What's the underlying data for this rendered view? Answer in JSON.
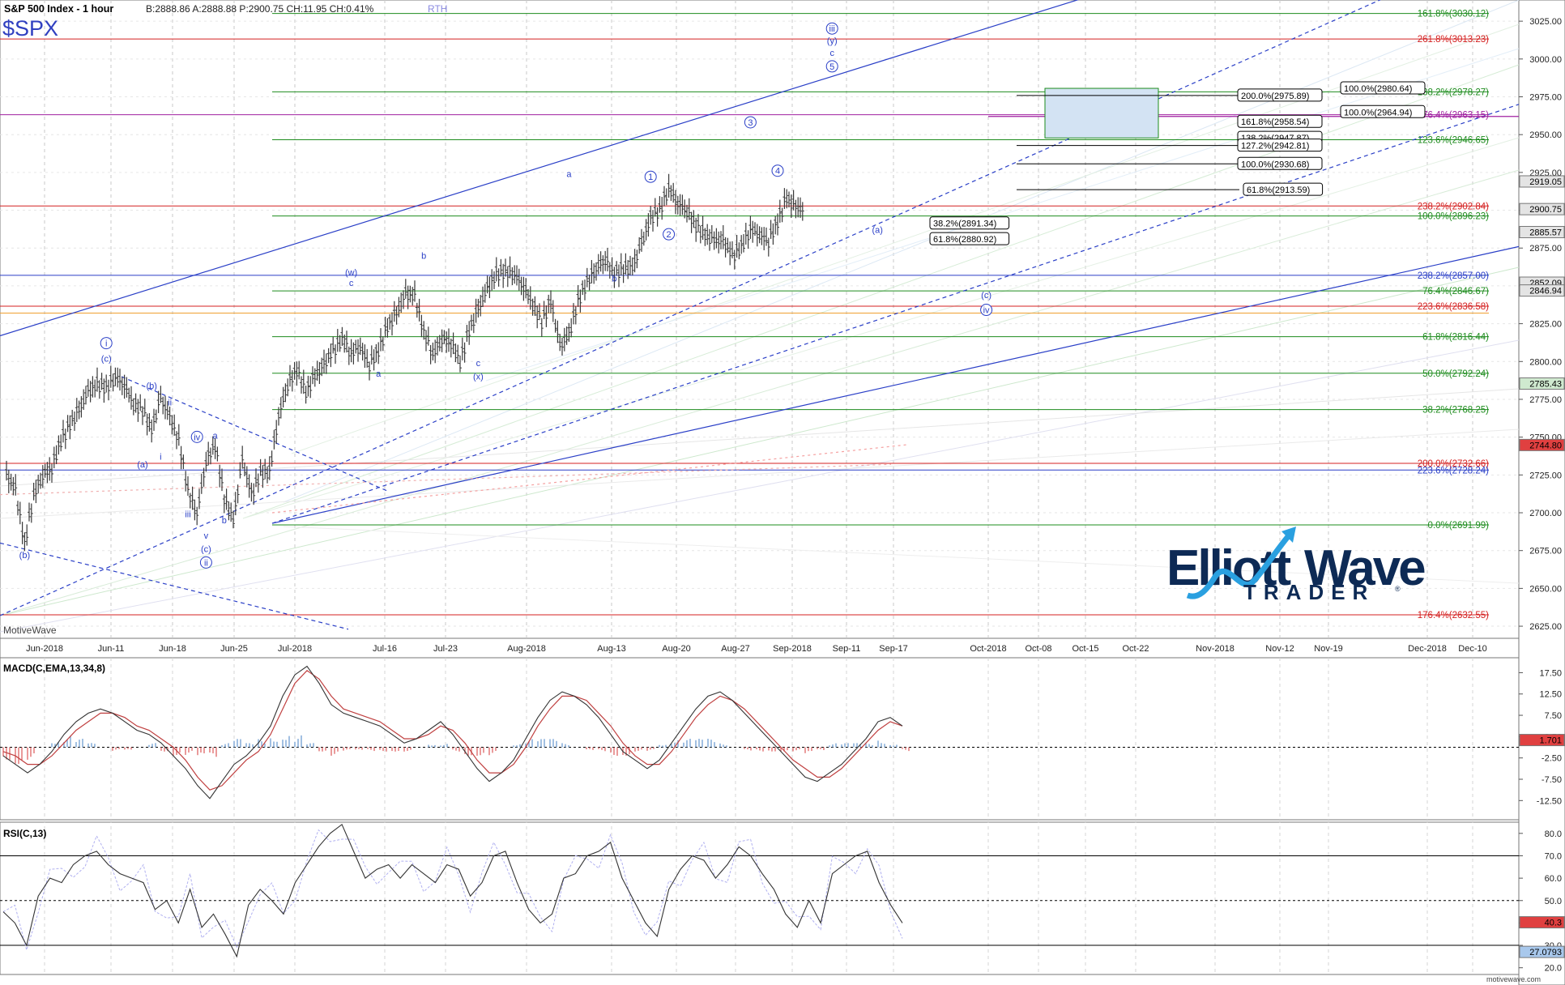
{
  "header": {
    "title": "S&P 500 Index - 1 hour",
    "quote": "B:2888.86  A:2888.88  P:2900.75  CH:11.95  CH:0.41%",
    "session": "RTH",
    "symbol": "$SPX"
  },
  "watermark": "MotiveWave",
  "footer_watermark": "motivewave.com",
  "logo": {
    "word1": "Elliott",
    "word2": "Wave",
    "sub": "TRADER",
    "reg": "®"
  },
  "colors": {
    "bars": "#3a3a3a",
    "wave": "#2a3fc7",
    "fib_green": "#1e8c1e",
    "fib_red": "#d42020",
    "fib_purple": "#a020a0",
    "macd_pos": "#7aa6d6",
    "macd_neg": "#e07070",
    "panel_bg": "#ffffff",
    "grid": "#cfcfcf"
  },
  "x_axis": {
    "labels": [
      "Jun-2018",
      "Jun-11",
      "Jun-18",
      "Jun-25",
      "Jul-2018",
      "Jul-16",
      "Jul-23",
      "Aug-2018",
      "Aug-13",
      "Aug-20",
      "Aug-27",
      "Sep-2018",
      "Sep-11",
      "Sep-17",
      "Oct-2018",
      "Oct-08",
      "Oct-15",
      "Oct-22",
      "Nov-2018",
      "Nov-12",
      "Nov-19",
      "Dec-2018",
      "Dec-10"
    ]
  },
  "chart_data": [
    {
      "type": "line",
      "title": "S&P 500 Index - 1 hour",
      "y_ticks": [
        2625,
        2650,
        2675,
        2700,
        2725,
        2750,
        2775,
        2800,
        2825,
        2850,
        2875,
        2900,
        2925,
        2950,
        2975,
        3000,
        3025
      ],
      "y_tick_labels": [
        "2625.00",
        "2650.00",
        "2675.00",
        "2700.00",
        "2725.00",
        "2750.00",
        "2775.00",
        "2800.00",
        "2825.00",
        "2850.00",
        "2875.00",
        "2900.00",
        "2925.00",
        "2950.00",
        "2975.00",
        "3000.00",
        "3025.00"
      ],
      "ylim": [
        2617,
        3039
      ],
      "price_path": [
        {
          "d": 0,
          "v": 2725
        },
        {
          "d": 1,
          "v": 2715
        },
        {
          "d": 2,
          "v": 2680
        },
        {
          "d": 3,
          "v": 2712
        },
        {
          "d": 4,
          "v": 2725
        },
        {
          "d": 5,
          "v": 2730
        },
        {
          "d": 6,
          "v": 2748
        },
        {
          "d": 7,
          "v": 2758
        },
        {
          "d": 8,
          "v": 2768
        },
        {
          "d": 9,
          "v": 2780
        },
        {
          "d": 10,
          "v": 2785
        },
        {
          "d": 11,
          "v": 2783
        },
        {
          "d": 12,
          "v": 2790
        },
        {
          "d": 13,
          "v": 2785
        },
        {
          "d": 14,
          "v": 2772
        },
        {
          "d": 15,
          "v": 2768
        },
        {
          "d": 16,
          "v": 2755
        },
        {
          "d": 17,
          "v": 2776
        },
        {
          "d": 18,
          "v": 2763
        },
        {
          "d": 19,
          "v": 2748
        },
        {
          "d": 20,
          "v": 2715
        },
        {
          "d": 21,
          "v": 2700
        },
        {
          "d": 22,
          "v": 2735
        },
        {
          "d": 23,
          "v": 2745
        },
        {
          "d": 24,
          "v": 2710
        },
        {
          "d": 25,
          "v": 2695
        },
        {
          "d": 26,
          "v": 2735
        },
        {
          "d": 27,
          "v": 2712
        },
        {
          "d": 28,
          "v": 2726
        },
        {
          "d": 29,
          "v": 2728
        },
        {
          "d": 30,
          "v": 2765
        },
        {
          "d": 31,
          "v": 2785
        },
        {
          "d": 32,
          "v": 2795
        },
        {
          "d": 33,
          "v": 2780
        },
        {
          "d": 34,
          "v": 2790
        },
        {
          "d": 35,
          "v": 2798
        },
        {
          "d": 36,
          "v": 2807
        },
        {
          "d": 37,
          "v": 2815
        },
        {
          "d": 38,
          "v": 2806
        },
        {
          "d": 39,
          "v": 2810
        },
        {
          "d": 40,
          "v": 2798
        },
        {
          "d": 41,
          "v": 2808
        },
        {
          "d": 42,
          "v": 2823
        },
        {
          "d": 43,
          "v": 2832
        },
        {
          "d": 44,
          "v": 2845
        },
        {
          "d": 45,
          "v": 2843
        },
        {
          "d": 46,
          "v": 2820
        },
        {
          "d": 47,
          "v": 2805
        },
        {
          "d": 48,
          "v": 2815
        },
        {
          "d": 49,
          "v": 2813
        },
        {
          "d": 50,
          "v": 2800
        },
        {
          "d": 51,
          "v": 2820
        },
        {
          "d": 52,
          "v": 2835
        },
        {
          "d": 53,
          "v": 2848
        },
        {
          "d": 54,
          "v": 2858
        },
        {
          "d": 55,
          "v": 2860
        },
        {
          "d": 56,
          "v": 2858
        },
        {
          "d": 57,
          "v": 2850
        },
        {
          "d": 58,
          "v": 2838
        },
        {
          "d": 59,
          "v": 2826
        },
        {
          "d": 60,
          "v": 2840
        },
        {
          "d": 61,
          "v": 2810
        },
        {
          "d": 62,
          "v": 2818
        },
        {
          "d": 63,
          "v": 2840
        },
        {
          "d": 64,
          "v": 2853
        },
        {
          "d": 65,
          "v": 2862
        },
        {
          "d": 66,
          "v": 2868
        },
        {
          "d": 67,
          "v": 2858
        },
        {
          "d": 68,
          "v": 2862
        },
        {
          "d": 69,
          "v": 2862
        },
        {
          "d": 70,
          "v": 2878
        },
        {
          "d": 71,
          "v": 2895
        },
        {
          "d": 72,
          "v": 2900
        },
        {
          "d": 73,
          "v": 2915
        },
        {
          "d": 74,
          "v": 2905
        },
        {
          "d": 75,
          "v": 2900
        },
        {
          "d": 76,
          "v": 2890
        },
        {
          "d": 77,
          "v": 2884
        },
        {
          "d": 78,
          "v": 2880
        },
        {
          "d": 79,
          "v": 2880
        },
        {
          "d": 80,
          "v": 2870
        },
        {
          "d": 81,
          "v": 2876
        },
        {
          "d": 82,
          "v": 2888
        },
        {
          "d": 83,
          "v": 2884
        },
        {
          "d": 84,
          "v": 2880
        },
        {
          "d": 85,
          "v": 2893
        },
        {
          "d": 86,
          "v": 2908
        },
        {
          "d": 87,
          "v": 2902
        },
        {
          "d": 88,
          "v": 2900
        }
      ],
      "horizontal_levels": [
        {
          "label": "161.8%(3030.12)",
          "value": 3030.12,
          "color": "green"
        },
        {
          "label": "261.8%(3013.23)",
          "value": 3013.23,
          "color": "red"
        },
        {
          "label": "138.2%(2978.27)",
          "value": 2978.27,
          "color": "green"
        },
        {
          "label": "176.4%(2963.15)",
          "value": 2963.15,
          "color": "purple"
        },
        {
          "label": "123.6%(2946.65)",
          "value": 2946.65,
          "color": "green"
        },
        {
          "label": "238.2%(2902.84)",
          "value": 2902.84,
          "color": "red"
        },
        {
          "label": "100.0%(2896.23)",
          "value": 2896.23,
          "color": "green"
        },
        {
          "label": "238.2%(2857.00)",
          "value": 2857.0,
          "color": "blue"
        },
        {
          "label": "76.4%(2846.67)",
          "value": 2846.67,
          "color": "green"
        },
        {
          "label": "223.6%(2836.58)",
          "value": 2836.58,
          "color": "red"
        },
        {
          "label": "61.8%(2816.44)",
          "value": 2816.44,
          "color": "green"
        },
        {
          "label": "50.0%(2792.24)",
          "value": 2792.24,
          "color": "green"
        },
        {
          "label": "38.2%(2768.25)",
          "value": 2768.25,
          "color": "green"
        },
        {
          "label": "200.0%(2732.66)",
          "value": 2732.66,
          "color": "red"
        },
        {
          "label": "223.6%(2728.24)",
          "value": 2728.24,
          "color": "blue"
        },
        {
          "label": "0.0%(2691.99)",
          "value": 2691.99,
          "color": "green"
        },
        {
          "label": "176.4%(2632.55)",
          "value": 2632.55,
          "color": "red"
        }
      ],
      "boxed_levels": [
        {
          "label": "100.0%(2980.64)",
          "value": 2980.64
        },
        {
          "label": "200.0%(2975.89)",
          "value": 2975.89
        },
        {
          "label": "100.0%(2964.94)",
          "value": 2964.94
        },
        {
          "label": "161.8%(2958.54)",
          "value": 2958.54
        },
        {
          "label": "138.2%(2947.87)",
          "value": 2947.87
        },
        {
          "label": "127.2%(2942.81)",
          "value": 2942.81
        },
        {
          "label": "100.0%(2930.68)",
          "value": 2930.68
        },
        {
          "label": "61.8%(2913.59)",
          "value": 2913.59
        },
        {
          "label": "38.2%(2891.34)",
          "value": 2891.34
        },
        {
          "label": "61.8%(2880.92)",
          "value": 2880.92
        }
      ],
      "price_tags": [
        {
          "label": "2919.05",
          "value": 2919.05,
          "style": "light"
        },
        {
          "label": "2900.75",
          "value": 2900.75,
          "style": "light"
        },
        {
          "label": "2885.57",
          "value": 2885.57,
          "style": "light"
        },
        {
          "label": "2852.09",
          "value": 2852.09,
          "style": "light"
        },
        {
          "label": "2846.94",
          "value": 2846.94,
          "style": "light"
        },
        {
          "label": "2785.43",
          "value": 2785.43,
          "style": "green"
        },
        {
          "label": "2744.80",
          "value": 2744.8,
          "style": "red"
        }
      ],
      "wave_labels": [
        {
          "t": "(b)",
          "d": 2,
          "v": 2670
        },
        {
          "t": "i",
          "d": 11,
          "v": 2810
        },
        {
          "t": "(c)",
          "d": 11,
          "v": 2800
        },
        {
          "t": "(a)",
          "d": 15,
          "v": 2730
        },
        {
          "t": "(b)",
          "d": 16,
          "v": 2782
        },
        {
          "t": "i",
          "d": 17,
          "v": 2735
        },
        {
          "t": "ii",
          "d": 18,
          "v": 2771
        },
        {
          "t": "iii",
          "d": 20,
          "v": 2697
        },
        {
          "t": "iv",
          "d": 21,
          "v": 2748
        },
        {
          "t": "v",
          "d": 22,
          "v": 2683
        },
        {
          "t": "(c)",
          "d": 22,
          "v": 2674
        },
        {
          "t": "ii",
          "d": 22,
          "v": 2665
        },
        {
          "t": "a",
          "d": 23,
          "v": 2749
        },
        {
          "t": "b",
          "d": 24,
          "v": 2693
        },
        {
          "t": "(w)",
          "d": 38,
          "v": 2857
        },
        {
          "t": "c",
          "d": 38,
          "v": 2850
        },
        {
          "t": "a",
          "d": 41,
          "v": 2790
        },
        {
          "t": "b",
          "d": 46,
          "v": 2868
        },
        {
          "t": "c",
          "d": 52,
          "v": 2797
        },
        {
          "t": "(x)",
          "d": 52,
          "v": 2788
        },
        {
          "t": "a",
          "d": 62,
          "v": 2922
        },
        {
          "t": "b",
          "d": 67,
          "v": 2853
        },
        {
          "t": "1",
          "d": 71,
          "v": 2920
        },
        {
          "t": "2",
          "d": 73,
          "v": 2882
        },
        {
          "t": "3",
          "d": 82,
          "v": 2956
        },
        {
          "t": "4",
          "d": 85,
          "v": 2924
        },
        {
          "t": "iii",
          "d": 91,
          "v": 3018
        },
        {
          "t": "(y)",
          "d": 91,
          "v": 3010
        },
        {
          "t": "c",
          "d": 91,
          "v": 3002
        },
        {
          "t": "5",
          "d": 91,
          "v": 2993
        },
        {
          "t": "(a)",
          "d": 96,
          "v": 2885
        },
        {
          "t": "(c)",
          "d": 108,
          "v": 2842
        },
        {
          "t": "iv",
          "d": 108,
          "v": 2832
        }
      ]
    },
    {
      "type": "line",
      "title": "MACD(C,EMA,13,34,8)",
      "y_ticks": [
        17.5,
        12.5,
        7.5,
        2.5,
        -2.5,
        -7.5,
        -12.5
      ],
      "y_tick_labels": [
        "17.50",
        "12.50",
        "7.50",
        "2.50",
        "-2.50",
        "-7.50",
        "-12.50"
      ],
      "ylim": [
        -17,
        21
      ],
      "last_value": "1.701",
      "macd_line": [
        -2,
        -4,
        -6,
        -4,
        -1,
        3,
        6,
        8,
        9,
        8,
        6,
        4,
        3,
        1,
        -2,
        -5,
        -9,
        -12,
        -8,
        -4,
        -2,
        1,
        5,
        12,
        17,
        19,
        15,
        10,
        8,
        7,
        6,
        5,
        3,
        1,
        2,
        4,
        6,
        3,
        -1,
        -5,
        -8,
        -6,
        -3,
        2,
        7,
        11,
        13,
        12,
        10,
        7,
        3,
        -1,
        -3,
        -5,
        -3,
        1,
        5,
        9,
        12,
        13,
        11,
        8,
        5,
        2,
        -1,
        -4,
        -7,
        -8,
        -6,
        -4,
        -1,
        2,
        6,
        7,
        5
      ],
      "signal_line": [
        -1,
        -2,
        -4,
        -4,
        -2,
        1,
        4,
        6,
        8,
        8,
        7,
        5,
        4,
        2,
        0,
        -3,
        -7,
        -10,
        -9,
        -6,
        -3,
        -1,
        3,
        9,
        15,
        18,
        16,
        12,
        9,
        8,
        7,
        6,
        4,
        2,
        2,
        3,
        5,
        4,
        1,
        -3,
        -6,
        -6,
        -4,
        0,
        5,
        9,
        12,
        12,
        11,
        8,
        5,
        1,
        -2,
        -4,
        -4,
        -1,
        3,
        7,
        10,
        12,
        11,
        9,
        6,
        3,
        0,
        -3,
        -5,
        -7,
        -7,
        -5,
        -2,
        1,
        4,
        6,
        5
      ],
      "histogram": [
        -3,
        -4,
        -3,
        0,
        2,
        3,
        2,
        1,
        0,
        -1,
        -1,
        0,
        1,
        -1,
        -2,
        -2,
        -3,
        -3,
        1,
        2,
        1,
        2,
        3,
        4,
        3,
        1,
        -1,
        -2,
        -1,
        -1,
        -1,
        -1,
        -1,
        -1,
        0,
        1,
        1,
        -1,
        -2,
        -2,
        -2,
        0,
        1,
        2,
        2,
        2,
        1,
        0,
        -1,
        -1,
        -2,
        -2,
        -1,
        -1,
        1,
        2,
        2,
        2,
        2,
        1,
        0,
        -1,
        -1,
        -1,
        -1,
        -1,
        -2,
        -1,
        1,
        1,
        1,
        1,
        2,
        1,
        -1
      ]
    },
    {
      "type": "line",
      "title": "RSI(C,13)",
      "y_ticks": [
        80,
        70,
        60,
        50,
        40,
        30,
        20
      ],
      "y_tick_labels": [
        "80.0",
        "70.0",
        "60.0",
        "50.0",
        "40.0",
        "30.0",
        "20.0"
      ],
      "ylim": [
        17,
        85
      ],
      "levels": [
        70,
        50,
        30
      ],
      "tags": [
        {
          "label": "40.3",
          "value": 40.3,
          "style": "red"
        },
        {
          "label": "27.0793",
          "value": 27.0793,
          "style": "blue"
        }
      ],
      "rsi": [
        45,
        40,
        30,
        52,
        60,
        58,
        66,
        70,
        72,
        66,
        62,
        60,
        58,
        46,
        50,
        40,
        55,
        38,
        44,
        35,
        25,
        48,
        55,
        50,
        44,
        58,
        66,
        74,
        80,
        84,
        72,
        60,
        64,
        66,
        60,
        66,
        62,
        58,
        66,
        64,
        52,
        58,
        70,
        72,
        58,
        46,
        40,
        44,
        60,
        62,
        70,
        72,
        76,
        60,
        50,
        40,
        34,
        55,
        64,
        70,
        68,
        60,
        66,
        74,
        70,
        62,
        55,
        44,
        38,
        50,
        40,
        62,
        66,
        70,
        72,
        58,
        48,
        40
      ]
    }
  ]
}
